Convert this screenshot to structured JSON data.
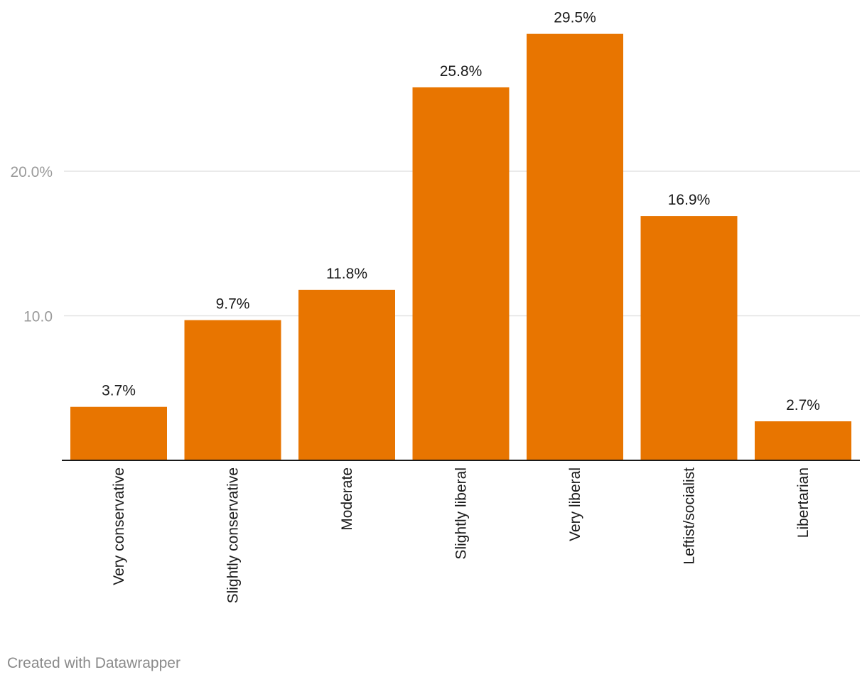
{
  "chart_data": {
    "type": "bar",
    "categories": [
      "Very conservative",
      "Slightly conservative",
      "Moderate",
      "Slightly liberal",
      "Very liberal",
      "Leftist/socialist",
      "Libertarian"
    ],
    "values": [
      3.7,
      9.7,
      11.8,
      25.8,
      29.5,
      16.9,
      2.7
    ],
    "value_labels": [
      "3.7%",
      "9.7%",
      "11.8%",
      "25.8%",
      "29.5%",
      "16.9%",
      "2.7%"
    ],
    "y_ticks": [
      {
        "value": 10,
        "label": "10.0"
      },
      {
        "value": 20,
        "label": "20.0%"
      }
    ],
    "ylim": [
      0,
      29.5
    ],
    "grid": true,
    "bar_color": "#e87500",
    "gridline_color": "#e3e3e3",
    "axis_color": "#1a1a1a",
    "tick_label_color": "#9a9a9a"
  },
  "footer": {
    "credit": "Created with Datawrapper"
  }
}
